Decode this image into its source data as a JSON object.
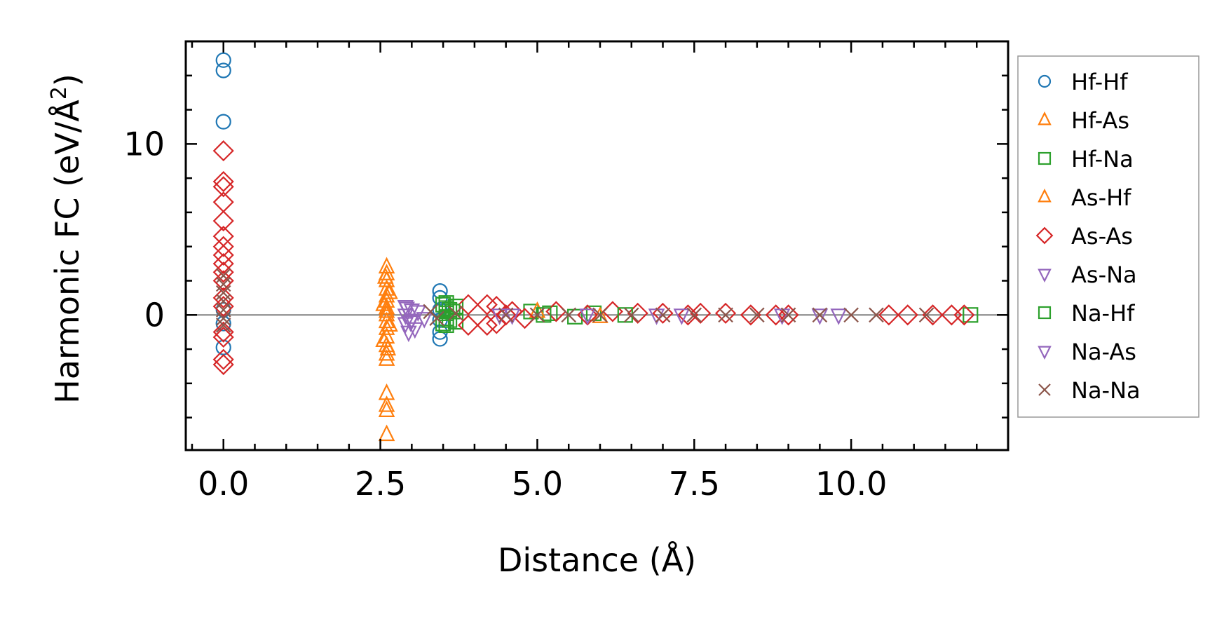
{
  "chart_data": {
    "type": "scatter",
    "title": "",
    "xlabel": "Distance (Å)",
    "ylabel_main": "Harmonic FC (eV/Å",
    "ylabel_sup": "2",
    "ylabel_close": ")",
    "xlim": [
      -0.6,
      12.5
    ],
    "ylim": [
      -7.9,
      16.0
    ],
    "xticks": [
      0.0,
      2.5,
      5.0,
      7.5,
      10.0
    ],
    "xtick_labels": [
      "0.0",
      "2.5",
      "5.0",
      "7.5",
      "10.0"
    ],
    "yticks": [
      0,
      10
    ],
    "ytick_labels": [
      "0",
      "10"
    ],
    "x_minor_step": 0.5,
    "y_minor_step": 2,
    "zero_line": true,
    "legend_position": "outside-right",
    "series": [
      {
        "name": "Hf-Hf",
        "marker": "circle",
        "color": "#1f77b4",
        "points": [
          [
            0,
            14.9
          ],
          [
            0,
            14.3
          ],
          [
            0,
            11.3
          ],
          [
            0,
            -1.9
          ],
          [
            0,
            0.3
          ],
          [
            0,
            -0.5
          ],
          [
            3.45,
            1.4
          ],
          [
            3.45,
            1.0
          ],
          [
            3.45,
            -1.0
          ],
          [
            3.45,
            -1.4
          ],
          [
            3.45,
            0.3
          ],
          [
            3.45,
            -0.3
          ]
        ]
      },
      {
        "name": "Hf-As",
        "marker": "triangle-up",
        "color": "#ff7f0e",
        "points": [
          [
            2.6,
            2.8
          ],
          [
            2.6,
            2.4
          ],
          [
            2.6,
            2.0
          ],
          [
            2.6,
            1.5
          ],
          [
            2.6,
            1.1
          ],
          [
            2.6,
            0.8
          ],
          [
            2.6,
            0.4
          ],
          [
            2.6,
            0.0
          ],
          [
            2.6,
            -0.4
          ],
          [
            2.6,
            -0.8
          ],
          [
            2.6,
            -1.3
          ],
          [
            2.6,
            -1.8
          ],
          [
            2.6,
            -2.3
          ],
          [
            2.6,
            -2.6
          ],
          [
            2.6,
            -4.6
          ],
          [
            2.6,
            -5.3
          ],
          [
            2.6,
            -5.6
          ],
          [
            2.6,
            -7.0
          ],
          [
            2.55,
            0.6
          ],
          [
            2.65,
            -0.6
          ],
          [
            2.65,
            1.3
          ],
          [
            2.55,
            -1.5
          ]
        ]
      },
      {
        "name": "Hf-Na",
        "marker": "square",
        "color": "#2ca02c",
        "points": [
          [
            3.55,
            0.7
          ],
          [
            3.55,
            0.4
          ],
          [
            3.55,
            0.1
          ],
          [
            3.55,
            -0.2
          ],
          [
            3.55,
            -0.6
          ],
          [
            3.6,
            0.3
          ],
          [
            3.6,
            -0.3
          ],
          [
            3.7,
            0.5
          ],
          [
            3.7,
            -0.4
          ],
          [
            4.9,
            0.2
          ],
          [
            5.2,
            0.1
          ],
          [
            5.6,
            -0.1
          ],
          [
            5.9,
            0.1
          ],
          [
            11.9,
            0.0
          ]
        ]
      },
      {
        "name": "As-Hf",
        "marker": "triangle-up",
        "color": "#ff7f0e",
        "points": [
          [
            2.58,
            2.2
          ],
          [
            2.62,
            -2.0
          ],
          [
            2.6,
            0.2
          ],
          [
            5.0,
            0.2
          ],
          [
            6.0,
            -0.1
          ]
        ]
      },
      {
        "name": "As-As",
        "marker": "diamond",
        "color": "#d62728",
        "points": [
          [
            0,
            9.6
          ],
          [
            0,
            7.8
          ],
          [
            0,
            7.5
          ],
          [
            0,
            6.6
          ],
          [
            0,
            5.5
          ],
          [
            0,
            4.6
          ],
          [
            0,
            4.0
          ],
          [
            0,
            3.5
          ],
          [
            0,
            3.0
          ],
          [
            0,
            2.5
          ],
          [
            0,
            2.0
          ],
          [
            0,
            1.0
          ],
          [
            0,
            0.5
          ],
          [
            0,
            -1.0
          ],
          [
            0,
            -1.3
          ],
          [
            0,
            -2.6
          ],
          [
            0,
            -2.9
          ],
          [
            3.9,
            0.6
          ],
          [
            3.9,
            -0.6
          ],
          [
            4.2,
            0.6
          ],
          [
            4.2,
            -0.6
          ],
          [
            4.35,
            0.5
          ],
          [
            4.35,
            -0.5
          ],
          [
            4.5,
            0.0
          ],
          [
            4.6,
            0.2
          ],
          [
            4.8,
            -0.2
          ],
          [
            5.3,
            0.2
          ],
          [
            5.8,
            0.0
          ],
          [
            6.2,
            0.2
          ],
          [
            6.6,
            0.1
          ],
          [
            7.0,
            0.1
          ],
          [
            7.4,
            0.0
          ],
          [
            7.6,
            0.1
          ],
          [
            8.0,
            0.1
          ],
          [
            8.4,
            0.0
          ],
          [
            8.8,
            0.0
          ],
          [
            9.0,
            0.0
          ],
          [
            10.6,
            0.0
          ],
          [
            10.9,
            0.0
          ],
          [
            11.3,
            0.0
          ],
          [
            11.6,
            0.0
          ],
          [
            11.8,
            0.0
          ]
        ]
      },
      {
        "name": "As-Na",
        "marker": "triangle-down",
        "color": "#9467bd",
        "points": [
          [
            2.9,
            0.5
          ],
          [
            2.9,
            0.0
          ],
          [
            2.9,
            -0.5
          ],
          [
            2.95,
            -1.0
          ],
          [
            3.0,
            0.3
          ],
          [
            3.0,
            -0.3
          ],
          [
            3.1,
            0.2
          ],
          [
            3.2,
            -0.2
          ],
          [
            4.6,
            0.0
          ],
          [
            5.8,
            0.0
          ],
          [
            7.3,
            0.0
          ],
          [
            8.9,
            0.0
          ],
          [
            9.8,
            0.0
          ]
        ]
      },
      {
        "name": "Na-Hf",
        "marker": "square",
        "color": "#2ca02c",
        "points": [
          [
            3.5,
            0.6
          ],
          [
            3.5,
            -0.5
          ],
          [
            3.65,
            0.2
          ],
          [
            5.1,
            0.0
          ],
          [
            6.4,
            0.0
          ]
        ]
      },
      {
        "name": "Na-As",
        "marker": "triangle-down",
        "color": "#9467bd",
        "points": [
          [
            2.92,
            0.4
          ],
          [
            2.98,
            -0.4
          ],
          [
            3.05,
            -0.8
          ],
          [
            4.4,
            0.0
          ],
          [
            6.9,
            0.0
          ],
          [
            9.5,
            0.0
          ]
        ]
      },
      {
        "name": "Na-Na",
        "marker": "x",
        "color": "#8c564b",
        "points": [
          [
            0,
            2.3
          ],
          [
            0,
            1.8
          ],
          [
            0,
            1.3
          ],
          [
            0,
            0.8
          ],
          [
            0,
            0.3
          ],
          [
            0,
            -0.2
          ],
          [
            0,
            -0.6
          ],
          [
            3.3,
            0.2
          ],
          [
            3.4,
            -0.2
          ],
          [
            3.7,
            0.1
          ],
          [
            4.5,
            0.0
          ],
          [
            5.0,
            0.0
          ],
          [
            5.5,
            0.0
          ],
          [
            6.0,
            0.0
          ],
          [
            6.5,
            0.0
          ],
          [
            7.0,
            0.0
          ],
          [
            7.5,
            0.0
          ],
          [
            8.0,
            0.0
          ],
          [
            8.5,
            0.0
          ],
          [
            9.0,
            0.0
          ],
          [
            9.5,
            0.0
          ],
          [
            10.0,
            0.0
          ],
          [
            10.4,
            0.0
          ],
          [
            11.2,
            0.0
          ]
        ]
      }
    ]
  }
}
